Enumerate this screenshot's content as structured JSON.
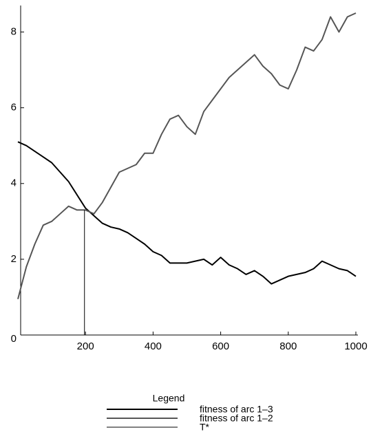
{
  "chart_data": {
    "type": "line",
    "x": [
      0,
      25,
      50,
      75,
      100,
      125,
      150,
      175,
      200,
      225,
      250,
      275,
      300,
      325,
      350,
      375,
      400,
      425,
      450,
      475,
      500,
      525,
      550,
      575,
      600,
      625,
      650,
      675,
      700,
      725,
      750,
      775,
      800,
      825,
      850,
      875,
      900,
      925,
      950,
      975,
      1000
    ],
    "series": [
      {
        "name": "fitness of arc 1–3",
        "color": "#000000",
        "width": 2,
        "values": [
          5.1,
          5.0,
          4.85,
          4.7,
          4.55,
          4.3,
          4.05,
          3.7,
          3.35,
          3.15,
          2.95,
          2.85,
          2.8,
          2.7,
          2.55,
          2.4,
          2.2,
          2.1,
          1.9,
          1.9,
          1.9,
          1.95,
          2.0,
          1.85,
          2.05,
          1.85,
          1.75,
          1.6,
          1.7,
          1.55,
          1.35,
          1.45,
          1.55,
          1.6,
          1.65,
          1.75,
          1.95,
          1.85,
          1.75,
          1.7,
          1.55
        ]
      },
      {
        "name": "fitness of arc 1–2",
        "color": "#555555",
        "width": 2,
        "values": [
          0.95,
          1.8,
          2.4,
          2.9,
          3.0,
          3.2,
          3.4,
          3.3,
          3.3,
          3.2,
          3.5,
          3.9,
          4.3,
          4.4,
          4.5,
          4.8,
          4.8,
          5.3,
          5.7,
          5.8,
          5.5,
          5.3,
          5.9,
          6.2,
          6.5,
          6.8,
          7.0,
          7.2,
          7.4,
          7.1,
          6.9,
          6.6,
          6.5,
          7.0,
          7.6,
          7.5,
          7.8,
          8.4,
          8.0,
          8.4,
          8.5
        ]
      },
      {
        "name": "T*",
        "color": "#000000",
        "width": 1,
        "x": [
          197,
          197
        ],
        "values": [
          0,
          3.3
        ]
      }
    ],
    "xlim": [
      0,
      1000
    ],
    "ylim": [
      0,
      8.7
    ],
    "xticks": [
      200,
      400,
      600,
      800,
      1000
    ],
    "yticks": [
      0,
      2,
      4,
      6,
      8
    ],
    "legend_title": "Legend"
  }
}
